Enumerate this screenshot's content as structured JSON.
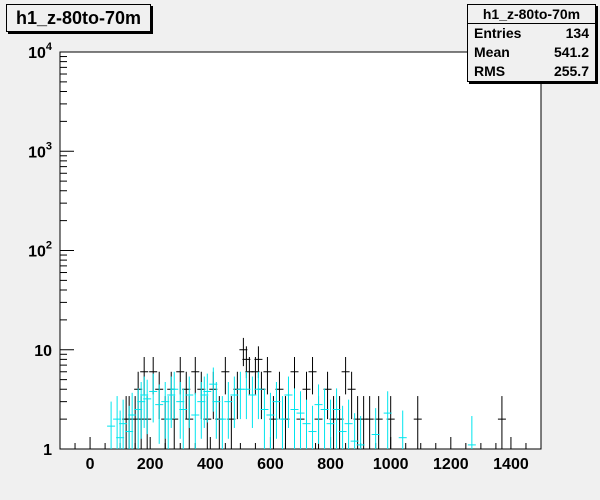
{
  "histogram": {
    "title": "h1_z-80to-70m"
  },
  "stats": {
    "title": "h1_z-80to-70m",
    "rows": [
      {
        "label": "Entries",
        "value": "134"
      },
      {
        "label": "Mean",
        "value": "541.2"
      },
      {
        "label": "RMS",
        "value": "255.7"
      }
    ]
  },
  "colors": {
    "pad": "#f0f0f0",
    "frame": "#ffffff",
    "series_a": "#000000",
    "series_b": "#00e5ee"
  },
  "chart_data": {
    "type": "scatter",
    "title": "h1_z-80to-70m",
    "xlabel": "",
    "ylabel": "",
    "xlim": [
      -100,
      1500
    ],
    "ylim": [
      1,
      10000
    ],
    "yscale": "log",
    "grid": false,
    "x_ticks": [
      "0",
      "200",
      "400",
      "600",
      "800",
      "1000",
      "1200",
      "1400"
    ],
    "y_ticks": [
      {
        "value": 1,
        "base": "1",
        "exp": ""
      },
      {
        "value": 10,
        "base": "10",
        "exp": ""
      },
      {
        "value": 100,
        "base": "10",
        "exp": "2"
      },
      {
        "value": 1000,
        "base": "10",
        "exp": "3"
      },
      {
        "value": 10000,
        "base": "10",
        "exp": "4"
      }
    ],
    "series": [
      {
        "color": "#000000",
        "points": [
          [
            120,
            2
          ],
          [
            130,
            2
          ],
          [
            150,
            2
          ],
          [
            160,
            4
          ],
          [
            170,
            2
          ],
          [
            180,
            6
          ],
          [
            190,
            2
          ],
          [
            210,
            6
          ],
          [
            230,
            4
          ],
          [
            250,
            2
          ],
          [
            270,
            4
          ],
          [
            280,
            2
          ],
          [
            300,
            6
          ],
          [
            320,
            4
          ],
          [
            330,
            2
          ],
          [
            350,
            6
          ],
          [
            370,
            4
          ],
          [
            390,
            2
          ],
          [
            410,
            4
          ],
          [
            430,
            2
          ],
          [
            450,
            6
          ],
          [
            470,
            2
          ],
          [
            490,
            4
          ],
          [
            510,
            10
          ],
          [
            520,
            8
          ],
          [
            530,
            6
          ],
          [
            550,
            6
          ],
          [
            560,
            8
          ],
          [
            570,
            4
          ],
          [
            590,
            6
          ],
          [
            610,
            2
          ],
          [
            630,
            4
          ],
          [
            650,
            2
          ],
          [
            680,
            6
          ],
          [
            700,
            2
          ],
          [
            720,
            4
          ],
          [
            740,
            6
          ],
          [
            760,
            2
          ],
          [
            790,
            4
          ],
          [
            810,
            2
          ],
          [
            830,
            2
          ],
          [
            850,
            6
          ],
          [
            870,
            4
          ],
          [
            890,
            2
          ],
          [
            910,
            2
          ],
          [
            930,
            2
          ],
          [
            960,
            2
          ],
          [
            1000,
            2
          ],
          [
            1090,
            2
          ],
          [
            1370,
            2
          ]
        ]
      },
      {
        "color": "#00e5ee",
        "points": [
          [
            70,
            1.7
          ],
          [
            90,
            2.0
          ],
          [
            100,
            1.3
          ],
          [
            110,
            1.8
          ],
          [
            130,
            1.5
          ],
          [
            140,
            2.2
          ],
          [
            160,
            2.5
          ],
          [
            170,
            3.0
          ],
          [
            180,
            3.5
          ],
          [
            190,
            3.2
          ],
          [
            210,
            3.8
          ],
          [
            230,
            2.8
          ],
          [
            250,
            3.0
          ],
          [
            260,
            2.0
          ],
          [
            270,
            3.5
          ],
          [
            280,
            4.0
          ],
          [
            300,
            3.0
          ],
          [
            310,
            2.5
          ],
          [
            330,
            3.5
          ],
          [
            350,
            2.2
          ],
          [
            370,
            3.0
          ],
          [
            380,
            3.5
          ],
          [
            390,
            3.8
          ],
          [
            410,
            4.5
          ],
          [
            420,
            3.0
          ],
          [
            440,
            2.0
          ],
          [
            460,
            3.0
          ],
          [
            480,
            3.5
          ],
          [
            500,
            4.0
          ],
          [
            520,
            4.0
          ],
          [
            540,
            3.5
          ],
          [
            560,
            4.0
          ],
          [
            580,
            2.5
          ],
          [
            600,
            2.2
          ],
          [
            620,
            3.0
          ],
          [
            640,
            2.0
          ],
          [
            660,
            3.5
          ],
          [
            680,
            2.5
          ],
          [
            700,
            2.3
          ],
          [
            720,
            1.8
          ],
          [
            740,
            1.5
          ],
          [
            760,
            2.8
          ],
          [
            780,
            2.5
          ],
          [
            800,
            1.8
          ],
          [
            820,
            2.5
          ],
          [
            840,
            1.5
          ],
          [
            860,
            1.8
          ],
          [
            880,
            1.2
          ],
          [
            900,
            1.1
          ],
          [
            950,
            1.4
          ],
          [
            990,
            2.3
          ],
          [
            1040,
            1.3
          ],
          [
            1270,
            1.1
          ]
        ]
      }
    ]
  }
}
